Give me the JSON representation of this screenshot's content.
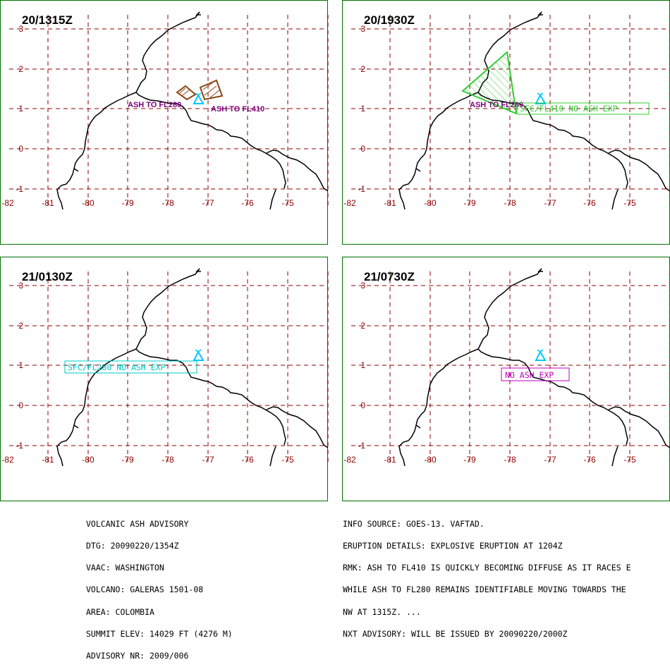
{
  "panels": [
    {
      "time": "20/1315Z",
      "labels": [
        {
          "text": "ASH TO FL280",
          "color": "#7a007a",
          "boxed": false
        },
        {
          "text": "ASH TO FL410",
          "color": "#7a007a",
          "boxed": false
        }
      ]
    },
    {
      "time": "20/1930Z",
      "labels": [
        {
          "text": "ASH TO FL280",
          "color": "#7a007a",
          "boxed": false
        },
        {
          "text": "SFC/FL410 NO ASH EXP",
          "color": "#33cc33",
          "boxed": true
        }
      ]
    },
    {
      "time": "21/0130Z",
      "labels": [
        {
          "text": "SFC/FL280 NO ASH EXP",
          "color": "#00c8c8",
          "boxed": true
        }
      ]
    },
    {
      "time": "21/0730Z",
      "labels": [
        {
          "text": "NO ASH EXP",
          "color": "#c000c0",
          "boxed": true
        }
      ]
    }
  ],
  "axes": {
    "lon_ticks": [
      "-82",
      "-81",
      "-80",
      "-79",
      "-78",
      "-77",
      "-76",
      "-75"
    ],
    "lat_ticks": [
      "3",
      "2",
      "1",
      "0",
      "-1"
    ]
  },
  "colors": {
    "grid": "#8b0000",
    "coast": "#000000",
    "volcano": "#00c8ff",
    "ash_1315": "#8b4513",
    "ash_1930": "#33cc33",
    "border": "#007000"
  },
  "advisory_left": [
    "VOLCANIC ASH ADVISORY",
    "DTG: 20090220/1354Z",
    "VAAC: WASHINGTON",
    "VOLCANO: GALERAS 1501-08",
    "AREA: COLOMBIA",
    "SUMMIT ELEV: 14029 FT (4276 M)",
    "ADVISORY NR: 2009/006"
  ],
  "advisory_right": [
    "INFO SOURCE: GOES-13. VAFTAD.",
    "ERUPTION DETAILS: EXPLOSIVE ERUPTION AT 1204Z",
    "RMK: ASH TO FL410 IS QUICKLY BECOMING DIFFUSE AS IT RACES E",
    "WHILE ASH TO FL280 REMAINS IDENTIFIABLE MOVING TOWARDS THE",
    "NW AT 1315Z. ...",
    "NXT ADVISORY: WILL BE ISSUED BY 20090220/2000Z"
  ]
}
